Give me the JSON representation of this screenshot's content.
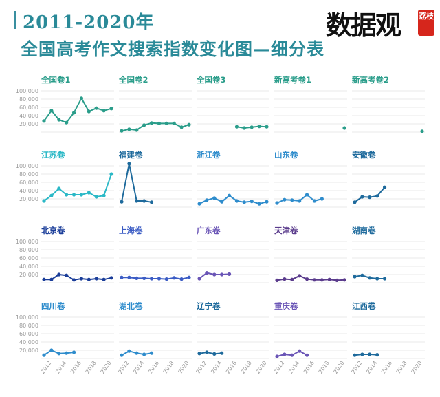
{
  "header": {
    "title_line1": "2011-2020年",
    "title_line2": "全国高考作文搜索指数变化图—细分表"
  },
  "logo": {
    "main_text": "数据观",
    "badge_text": "荔枝"
  },
  "colors": {
    "teal": "#2a9d8a",
    "cyan": "#2ab8c6",
    "blue": "#2e8ccc",
    "navy": "#1a3d99",
    "indigo": "#3b5cc4",
    "violet": "#6a55b6",
    "purple": "#5a3b8c",
    "steel": "#1e6a9c",
    "grid": "#e2e2e2",
    "axis_text": "#9a9a9a"
  },
  "chart_data": [
    {
      "type": "line",
      "title": "全国卷1",
      "x": [
        2011,
        2012,
        2013,
        2014,
        2015,
        2016,
        2017,
        2018,
        2019,
        2020
      ],
      "series": [
        {
          "values": [
            27000,
            52000,
            30000,
            23000,
            47000,
            82000,
            50000,
            58000,
            52000,
            57000
          ]
        }
      ],
      "ylim": [
        0,
        100000
      ],
      "yticks": [
        "100,000",
        "80,000",
        "60,000",
        "40,000",
        "20,000"
      ],
      "show_yticks": true,
      "show_xticks": false
    },
    {
      "type": "line",
      "title": "全国卷2",
      "x": [
        2011,
        2012,
        2013,
        2014,
        2015,
        2016,
        2017,
        2018,
        2019,
        2020
      ],
      "series": [
        {
          "values": [
            3000,
            7000,
            5000,
            17000,
            22000,
            21000,
            21000,
            21000,
            12000,
            18000
          ]
        }
      ],
      "ylim": [
        0,
        100000
      ],
      "show_yticks": false,
      "show_xticks": false
    },
    {
      "type": "line",
      "title": "全国卷3",
      "x": [
        2011,
        2012,
        2013,
        2014,
        2015,
        2016,
        2017,
        2018,
        2019,
        2020
      ],
      "series": [
        {
          "values": [
            null,
            null,
            null,
            null,
            null,
            13000,
            10000,
            12000,
            14000,
            13000
          ]
        }
      ],
      "ylim": [
        0,
        100000
      ],
      "show_yticks": false,
      "show_xticks": false
    },
    {
      "type": "line",
      "title": "新高考卷1",
      "x": [
        2011,
        2012,
        2013,
        2014,
        2015,
        2016,
        2017,
        2018,
        2019,
        2020
      ],
      "series": [
        {
          "values": [
            null,
            null,
            null,
            null,
            null,
            null,
            null,
            null,
            null,
            10000
          ]
        }
      ],
      "ylim": [
        0,
        100000
      ],
      "show_yticks": false,
      "show_xticks": false
    },
    {
      "type": "line",
      "title": "新高考卷2",
      "x": [
        2011,
        2012,
        2013,
        2014,
        2015,
        2016,
        2017,
        2018,
        2019,
        2020
      ],
      "series": [
        {
          "values": [
            null,
            null,
            null,
            null,
            null,
            null,
            null,
            null,
            null,
            2000
          ]
        }
      ],
      "ylim": [
        0,
        100000
      ],
      "show_yticks": false,
      "show_xticks": false
    },
    {
      "type": "line",
      "title": "江苏卷",
      "x": [
        2011,
        2012,
        2013,
        2014,
        2015,
        2016,
        2017,
        2018,
        2019,
        2020
      ],
      "series": [
        {
          "values": [
            15000,
            28000,
            45000,
            30000,
            30000,
            30000,
            35000,
            25000,
            28000,
            80000
          ]
        }
      ],
      "ylim": [
        0,
        100000
      ],
      "yticks": [
        "100,000",
        "80,000",
        "60,000",
        "40,000",
        "20,000"
      ],
      "show_yticks": true,
      "show_xticks": false
    },
    {
      "type": "line",
      "title": "福建卷",
      "x": [
        2011,
        2012,
        2013,
        2014,
        2015,
        2016,
        2017,
        2018,
        2019,
        2020
      ],
      "series": [
        {
          "values": [
            13000,
            105000,
            15000,
            15000,
            12000,
            null,
            null,
            null,
            null,
            null
          ]
        }
      ],
      "ylim": [
        0,
        100000
      ],
      "show_yticks": false,
      "show_xticks": false
    },
    {
      "type": "line",
      "title": "浙江卷",
      "x": [
        2011,
        2012,
        2013,
        2014,
        2015,
        2016,
        2017,
        2018,
        2019,
        2020
      ],
      "series": [
        {
          "values": [
            8000,
            17000,
            22000,
            13000,
            28000,
            15000,
            12000,
            14000,
            8000,
            13000
          ]
        }
      ],
      "ylim": [
        0,
        100000
      ],
      "show_yticks": false,
      "show_xticks": false
    },
    {
      "type": "line",
      "title": "山东卷",
      "x": [
        2011,
        2012,
        2013,
        2014,
        2015,
        2016,
        2017,
        2018,
        2019,
        2020
      ],
      "series": [
        {
          "values": [
            10000,
            18000,
            17000,
            15000,
            30000,
            15000,
            20000,
            null,
            null,
            null
          ]
        }
      ],
      "ylim": [
        0,
        100000
      ],
      "show_yticks": false,
      "show_xticks": false
    },
    {
      "type": "line",
      "title": "安徽卷",
      "x": [
        2011,
        2012,
        2013,
        2014,
        2015,
        2016,
        2017,
        2018,
        2019,
        2020
      ],
      "series": [
        {
          "values": [
            12000,
            25000,
            24000,
            27000,
            48000,
            null,
            null,
            null,
            null,
            null
          ]
        }
      ],
      "ylim": [
        0,
        100000
      ],
      "show_yticks": false,
      "show_xticks": false
    },
    {
      "type": "line",
      "title": "北京卷",
      "x": [
        2011,
        2012,
        2013,
        2014,
        2015,
        2016,
        2017,
        2018,
        2019,
        2020
      ],
      "series": [
        {
          "values": [
            8000,
            8000,
            20000,
            18000,
            7000,
            10000,
            8000,
            10000,
            8000,
            12000
          ]
        }
      ],
      "ylim": [
        0,
        100000
      ],
      "yticks": [
        "100,000",
        "80,000",
        "60,000",
        "40,000",
        "20,000"
      ],
      "show_yticks": true,
      "show_xticks": false
    },
    {
      "type": "line",
      "title": "上海卷",
      "x": [
        2011,
        2012,
        2013,
        2014,
        2015,
        2016,
        2017,
        2018,
        2019,
        2020
      ],
      "series": [
        {
          "values": [
            13000,
            13000,
            11000,
            11000,
            10000,
            10000,
            9000,
            12000,
            9000,
            13000
          ]
        }
      ],
      "ylim": [
        0,
        100000
      ],
      "show_yticks": false,
      "show_xticks": false
    },
    {
      "type": "line",
      "title": "广东卷",
      "x": [
        2011,
        2012,
        2013,
        2014,
        2015,
        2016,
        2017,
        2018,
        2019,
        2020
      ],
      "series": [
        {
          "values": [
            10000,
            24000,
            20000,
            20000,
            21000,
            null,
            null,
            null,
            null,
            null
          ]
        }
      ],
      "ylim": [
        0,
        100000
      ],
      "show_yticks": false,
      "show_xticks": false
    },
    {
      "type": "line",
      "title": "天津卷",
      "x": [
        2011,
        2012,
        2013,
        2014,
        2015,
        2016,
        2017,
        2018,
        2019,
        2020
      ],
      "series": [
        {
          "values": [
            6000,
            9000,
            8000,
            17000,
            9000,
            7000,
            7000,
            8000,
            6000,
            7000
          ]
        }
      ],
      "ylim": [
        0,
        100000
      ],
      "show_yticks": false,
      "show_xticks": false
    },
    {
      "type": "line",
      "title": "湖南卷",
      "x": [
        2011,
        2012,
        2013,
        2014,
        2015,
        2016,
        2017,
        2018,
        2019,
        2020
      ],
      "series": [
        {
          "values": [
            15000,
            18000,
            12000,
            10000,
            10000,
            null,
            null,
            null,
            null,
            null
          ]
        }
      ],
      "ylim": [
        0,
        100000
      ],
      "show_yticks": false,
      "show_xticks": false
    },
    {
      "type": "line",
      "title": "四川卷",
      "x": [
        2011,
        2012,
        2013,
        2014,
        2015,
        2016,
        2017,
        2018,
        2019,
        2020
      ],
      "series": [
        {
          "values": [
            8000,
            20000,
            12000,
            13000,
            15000,
            null,
            null,
            null,
            null,
            null
          ]
        }
      ],
      "ylim": [
        0,
        100000
      ],
      "yticks": [
        "100,000",
        "80,000",
        "60,000",
        "40,000",
        "20,000"
      ],
      "show_yticks": true,
      "show_xticks": true,
      "xticks": [
        "2012",
        "2014",
        "2016",
        "2018",
        "2020"
      ]
    },
    {
      "type": "line",
      "title": "湖北卷",
      "x": [
        2011,
        2012,
        2013,
        2014,
        2015,
        2016,
        2017,
        2018,
        2019,
        2020
      ],
      "series": [
        {
          "values": [
            8000,
            18000,
            13000,
            10000,
            13000,
            null,
            null,
            null,
            null,
            null
          ]
        }
      ],
      "ylim": [
        0,
        100000
      ],
      "show_yticks": false,
      "show_xticks": true,
      "xticks": [
        "2012",
        "2014",
        "2016",
        "2018",
        "2020"
      ]
    },
    {
      "type": "line",
      "title": "辽宁卷",
      "x": [
        2011,
        2012,
        2013,
        2014,
        2015,
        2016,
        2017,
        2018,
        2019,
        2020
      ],
      "series": [
        {
          "values": [
            12000,
            15000,
            11000,
            13000,
            null,
            null,
            null,
            null,
            null,
            null
          ]
        }
      ],
      "ylim": [
        0,
        100000
      ],
      "show_yticks": false,
      "show_xticks": true,
      "xticks": [
        "2012",
        "2014",
        "2016",
        "2018",
        "2020"
      ]
    },
    {
      "type": "line",
      "title": "重庆卷",
      "x": [
        2011,
        2012,
        2013,
        2014,
        2015,
        2016,
        2017,
        2018,
        2019,
        2020
      ],
      "series": [
        {
          "values": [
            5000,
            10000,
            8000,
            18000,
            8000,
            null,
            null,
            null,
            null,
            null
          ]
        }
      ],
      "ylim": [
        0,
        100000
      ],
      "show_yticks": false,
      "show_xticks": true,
      "xticks": [
        "2012",
        "2014",
        "2016",
        "2018",
        "2020"
      ]
    },
    {
      "type": "line",
      "title": "江西卷",
      "x": [
        2011,
        2012,
        2013,
        2014,
        2015,
        2016,
        2017,
        2018,
        2019,
        2020
      ],
      "series": [
        {
          "values": [
            8000,
            10000,
            10000,
            9000,
            null,
            null,
            null,
            null,
            null,
            null
          ]
        }
      ],
      "ylim": [
        0,
        100000
      ],
      "show_yticks": false,
      "show_xticks": true,
      "xticks": [
        "2012",
        "2014",
        "2016",
        "2018",
        "2020"
      ]
    }
  ],
  "panel_colors": [
    "teal",
    "teal",
    "teal",
    "teal",
    "teal",
    "cyan",
    "steel",
    "blue",
    "blue",
    "steel",
    "navy",
    "indigo",
    "violet",
    "purple",
    "steel",
    "blue",
    "blue",
    "steel",
    "violet",
    "steel"
  ]
}
